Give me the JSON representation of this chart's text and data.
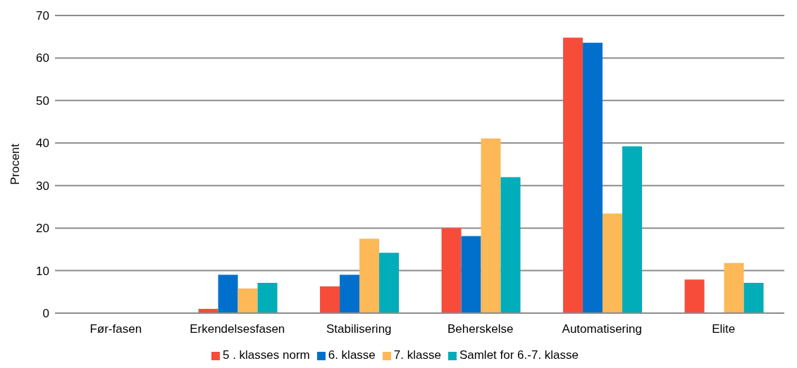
{
  "chart_data": {
    "type": "bar",
    "ylabel": "Procent",
    "categories": [
      "Før-fasen",
      "Erkendelsesfasen",
      "Stabilisering",
      "Beherskelse",
      "Automatisering",
      "Elite"
    ],
    "series": [
      {
        "name": "5 . klasses norm",
        "color": "#f84c3a",
        "values": [
          0,
          1.0,
          6.3,
          20.0,
          64.8,
          7.9
        ]
      },
      {
        "name": "6. klasse",
        "color": "#0070cc",
        "values": [
          0,
          9.0,
          9.0,
          18.1,
          63.6,
          0
        ]
      },
      {
        "name": "7. klasse",
        "color": "#fdb858",
        "values": [
          0,
          5.8,
          17.5,
          41.1,
          23.4,
          11.8
        ]
      },
      {
        "name": "Samlet for 6.-7. klasse",
        "color": "#00adb8",
        "values": [
          0,
          7.1,
          14.2,
          32.0,
          39.2,
          7.1
        ]
      }
    ],
    "ylim": [
      0,
      70
    ],
    "yticks": [
      0,
      10,
      20,
      30,
      40,
      50,
      60,
      70
    ],
    "grid": "y",
    "legend": "bottom"
  }
}
